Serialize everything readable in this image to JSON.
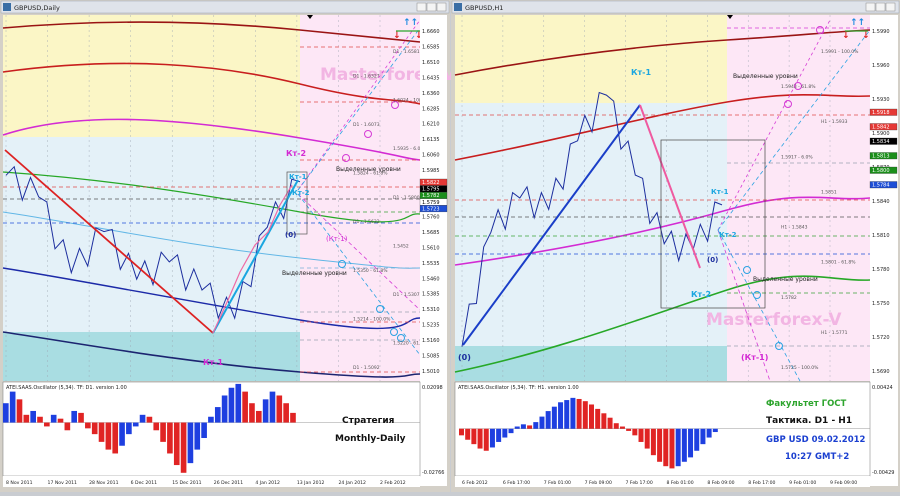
{
  "left": {
    "title": "GBPUSD,Daily",
    "watermark": "Masterforex-V",
    "price_axis": [
      "1.6660",
      "1.6585",
      "1.6510",
      "1.6435",
      "1.6360",
      "1.6285",
      "1.6210",
      "1.6135",
      "1.6060",
      "1.5985",
      "1.5910",
      "1.5835",
      "1.5760",
      "1.5685",
      "1.5610",
      "1.5535",
      "1.5460",
      "1.5385",
      "1.5310",
      "1.5235",
      "1.5160",
      "1.5085",
      "1.5010"
    ],
    "price_marks": [
      {
        "text": "1.5822",
        "color": "#e53935"
      },
      {
        "text": "1.5795",
        "color": "#000000"
      },
      {
        "text": "1.5782",
        "color": "#1b8f1b"
      },
      {
        "text": "1.5759",
        "color": "#ffffff"
      },
      {
        "text": "1.5723",
        "color": "#1e4fd6"
      }
    ],
    "dates": [
      "8 Nov 2011",
      "17 Nov 2011",
      "28 Nov 2011",
      "6 Dec 2011",
      "15 Dec 2011",
      "26 Dec 2011",
      "4 Jan 2012",
      "13 Jan 2012",
      "24 Jan 2012",
      "2 Feb 2012"
    ],
    "labels": {
      "kt2_top": "Кт-2",
      "kt1_small": "Кт-1",
      "kt2_small": "Кт-2",
      "zero": "(0)",
      "minus1": "(Кт-1)",
      "kt1_bottom": "Кт-1",
      "highlighted_1": "Выделенные уровни",
      "highlighted_2": "Выделенные уровни"
    },
    "level_labels": [
      "D1 - 1.6581",
      "D1 - 1.6327",
      "1.6024 - 100.0%",
      "D1 - 1.6073",
      "1.5935 - 6.0%",
      "1.5824 - 61.8%",
      "D1 - 1.5800",
      "D1 - 1.5632",
      "1.5452",
      "1.5350 - 61.8%",
      "D1 - 1.5307",
      "1.5214 - 100.0%",
      "1.5220 - 61.8%",
      "D1 - 1.5092"
    ],
    "osc_title": "ATEI.SAAS.Oscillator (5,34). TF: D1. version 1.00",
    "osc_axis_top": "0.02098",
    "osc_axis_bottom": "-0.02766",
    "strategy_1": "Стратегия",
    "strategy_2": "Monthly-Daily"
  },
  "right": {
    "title": "GBPUSD,H1",
    "watermark": "Masterforex-V",
    "price_axis": [
      "1.5990",
      "1.5960",
      "1.5930",
      "1.5900",
      "1.5870",
      "1.5840",
      "1.5810",
      "1.5780",
      "1.5750",
      "1.5720",
      "1.5690"
    ],
    "price_marks": [
      {
        "text": "1.5918",
        "color": "#e53935"
      },
      {
        "text": "1.5842",
        "color": "#e53935"
      },
      {
        "text": "1.5834",
        "color": "#000000"
      },
      {
        "text": "1.5813",
        "color": "#1b8f1b"
      },
      {
        "text": "1.5800",
        "color": "#1b8f1b"
      },
      {
        "text": "1.5784",
        "color": "#1e4fd6"
      }
    ],
    "dates": [
      "6 Feb 2012",
      "6 Feb 17:00",
      "7 Feb 01:00",
      "7 Feb 09:00",
      "7 Feb 17:00",
      "8 Feb 01:00",
      "8 Feb 09:00",
      "8 Feb 17:00",
      "9 Feb 01:00",
      "9 Feb 09:00"
    ],
    "labels": {
      "kt1_top": "Кт-1",
      "kt1_mid": "Кт-1",
      "kt2_mid": "Кт-2",
      "zero_mid": "(0)",
      "kt2_low": "Кт-2",
      "zero_bottom": "(0)",
      "minus1": "(Кт-1)",
      "highlighted_1": "Выделенные уровни",
      "highlighted_2": "Выделенные уровни"
    },
    "level_labels": [
      "1.5991 - 100.0%",
      "1.5943 - 61.8%",
      "H1 - 1.5933",
      "1.5917 - 6.0%",
      "1.5851",
      "H1 - 1.5843",
      "1.5801 - 61.8%",
      "1.5782",
      "H1 - 1.5771",
      "1.5725 - 100.0%"
    ],
    "osc_title": "ATEI.SAAS.Oscillator (5,34). TF: H1. version 1.00",
    "osc_axis_top": "0.00424",
    "osc_axis_bottom": "-0.00429",
    "info_1": "Факультет ГОСТ",
    "info_2": "Тактика. D1 - H1",
    "info_3": "GBP USD 09.02.2012",
    "info_4": "10:27 GMT+2"
  },
  "colors": {
    "zone_yellow": "#fbf6c6",
    "zone_blue": "#e4f1f8",
    "zone_teal": "#a9dde2",
    "zone_pink": "#fde7f6",
    "watermark": "#f2b5e3",
    "price_line": "#1c2e9e",
    "trend_red": "#dd2222",
    "trend_blue": "#1a3ec8",
    "trend_cyan": "#1aa6e0",
    "osc_red": "#e02424",
    "osc_blue": "#1e3fe0",
    "info_green": "#2ea52e",
    "info_blue": "#1a3fd0"
  },
  "chart_data": [
    {
      "type": "line",
      "title": "GBPUSD,Daily",
      "x": [
        "8 Nov 2011",
        "17 Nov 2011",
        "28 Nov 2011",
        "6 Dec 2011",
        "15 Dec 2011",
        "26 Dec 2011",
        "4 Jan 2012",
        "13 Jan 2012",
        "24 Jan 2012",
        "2 Feb 2012"
      ],
      "series": [
        {
          "values": [
            1.596,
            1.586,
            1.551,
            1.57,
            1.548,
            1.556,
            1.543,
            1.53,
            1.572,
            1.593
          ]
        }
      ],
      "ylim": [
        1.501,
        1.67
      ]
    },
    {
      "type": "line",
      "title": "GBPUSD,H1",
      "x": [
        "6 Feb 2012",
        "6 Feb 17:00",
        "7 Feb 01:00",
        "7 Feb 09:00",
        "7 Feb 17:00",
        "8 Feb 01:00",
        "8 Feb 09:00",
        "8 Feb 17:00",
        "9 Feb 01:00",
        "9 Feb 09:00"
      ],
      "series": [
        {
          "values": [
            1.571,
            1.581,
            1.584,
            1.583,
            1.589,
            1.593,
            1.586,
            1.58,
            1.5795,
            1.5834
          ]
        }
      ],
      "ylim": [
        1.568,
        1.6
      ]
    },
    {
      "type": "bar",
      "title": "ATEI.SAAS.Oscillator (5,34). TF: D1. version 1.00",
      "values": [
        0.01,
        0.016,
        0.012,
        0.004,
        0.006,
        0.003,
        -0.002,
        0.004,
        0.002,
        -0.004,
        0.006,
        0.005,
        -0.003,
        -0.006,
        -0.01,
        -0.014,
        -0.016,
        -0.012,
        -0.006,
        -0.002,
        0.004,
        0.003,
        -0.004,
        -0.01,
        -0.016,
        -0.022,
        -0.026,
        -0.021,
        -0.014,
        -0.008,
        0.003,
        0.008,
        0.014,
        0.018,
        0.02,
        0.016,
        0.01,
        0.006,
        0.012,
        0.016,
        0.014,
        0.01,
        0.005
      ],
      "ylim": [
        -0.02766,
        0.02098
      ]
    },
    {
      "type": "bar",
      "title": "ATEI.SAAS.Oscillator (5,34). TF: H1. version 1.00",
      "values": [
        -0.0006,
        -0.001,
        -0.0014,
        -0.0018,
        -0.002,
        -0.0017,
        -0.0012,
        -0.0008,
        -0.0004,
        0.0002,
        0.0004,
        0.0003,
        0.0006,
        0.0011,
        0.0016,
        0.002,
        0.0024,
        0.0026,
        0.0028,
        0.0027,
        0.0025,
        0.0022,
        0.0018,
        0.0014,
        0.001,
        0.0005,
        0.0002,
        -0.0002,
        -0.0006,
        -0.0012,
        -0.0018,
        -0.0024,
        -0.003,
        -0.0034,
        -0.0036,
        -0.0034,
        -0.003,
        -0.0026,
        -0.002,
        -0.0014,
        -0.0008,
        -0.0003
      ],
      "ylim": [
        -0.00429,
        0.00424
      ]
    }
  ]
}
